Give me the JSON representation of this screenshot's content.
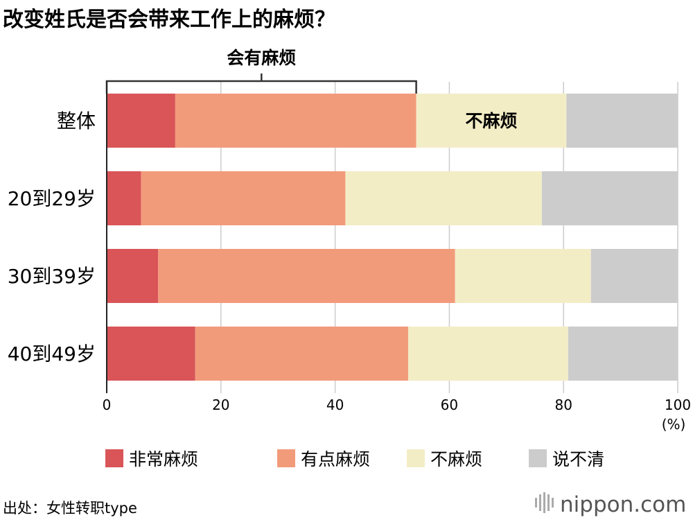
{
  "title": "改变姓氏是否会带来工作上的麻烦？",
  "chart_data": {
    "type": "bar",
    "orientation": "horizontal",
    "stacked": true,
    "categories": [
      "整体",
      "20到29岁",
      "30到39岁",
      "40到49岁"
    ],
    "series": [
      {
        "name": "非常麻烦",
        "color": "#d95558",
        "values": [
          12.0,
          6.0,
          9.0,
          15.5
        ]
      },
      {
        "name": "有点麻烦",
        "color": "#f29b7b",
        "values": [
          42.2,
          35.8,
          52.0,
          37.3
        ]
      },
      {
        "name": "不麻烦",
        "color": "#f3edc6",
        "values": [
          26.3,
          34.4,
          23.8,
          28.0
        ]
      },
      {
        "name": "说不清",
        "color": "#cccccc",
        "values": [
          19.5,
          23.8,
          15.2,
          19.2
        ]
      }
    ],
    "xlim": [
      0,
      100
    ],
    "xticks": [
      0,
      20,
      40,
      60,
      80,
      100
    ],
    "x_unit": "(%)",
    "grid": true,
    "legend_position": "bottom",
    "annotations": {
      "bracket_label": "会有麻烦",
      "bracket_range": [
        0,
        54.2
      ],
      "inline_label": "不麻烦",
      "inline_label_category": "整体"
    }
  },
  "source": "出处：女性转职type",
  "logo": "nippon.com",
  "colors": {
    "grid": "#cccccc",
    "axis": "#222222",
    "logo_accent": "#d9554f"
  }
}
